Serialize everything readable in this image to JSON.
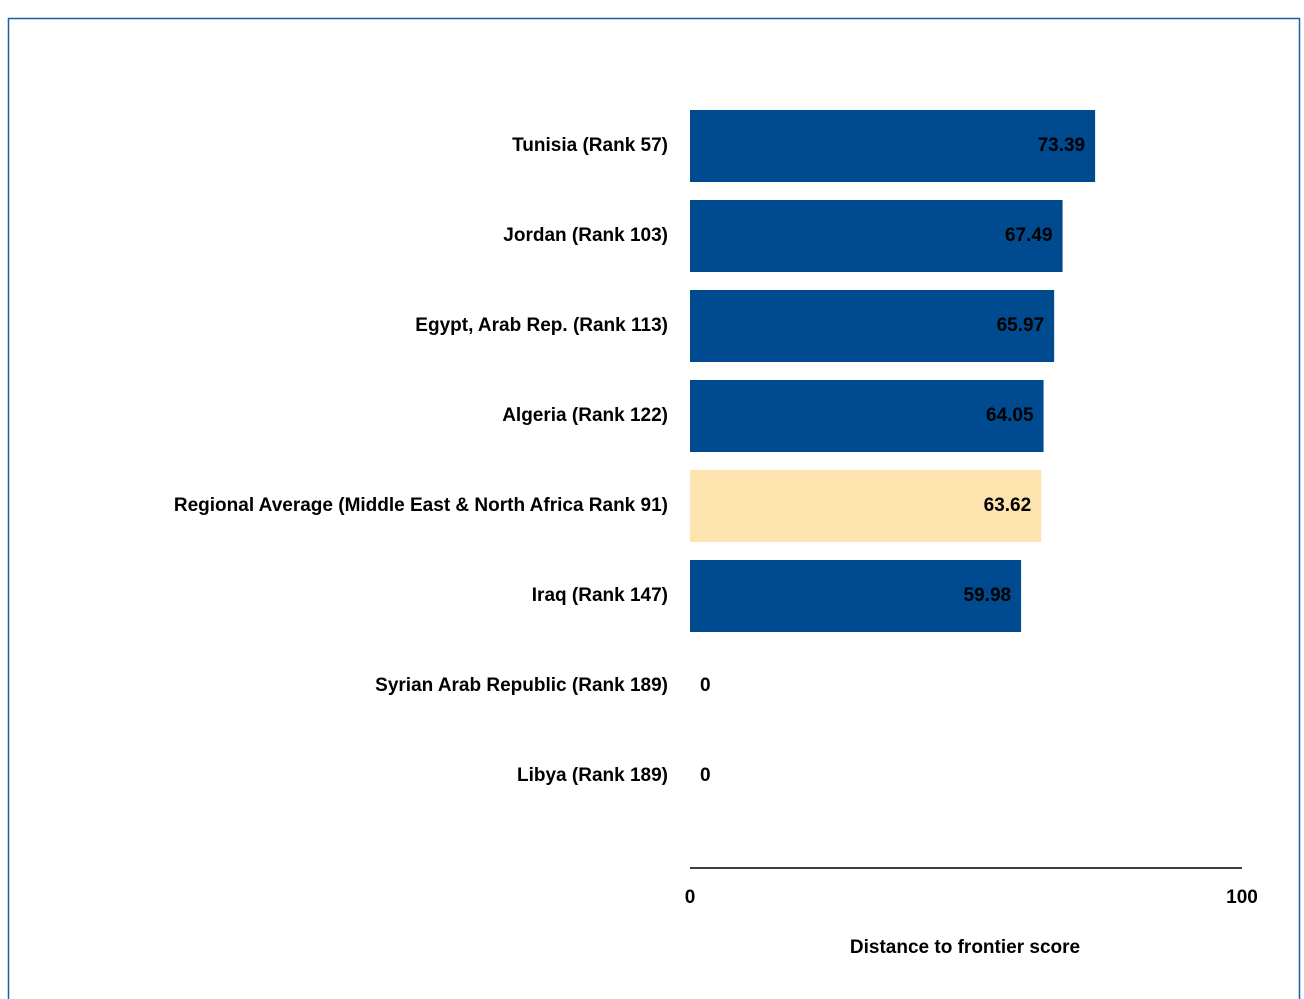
{
  "chart_data": {
    "type": "barh",
    "categories": [
      "Tunisia (Rank 57)",
      "Jordan (Rank 103)",
      "Egypt, Arab Rep. (Rank 113)",
      "Algeria (Rank 122)",
      "Regional Average (Middle East & North Africa Rank 91)",
      "Iraq (Rank 147)",
      "Syrian Arab Republic (Rank 189)",
      "Libya (Rank 189)"
    ],
    "values": [
      73.39,
      67.49,
      65.97,
      64.05,
      63.62,
      59.98,
      0,
      0
    ],
    "colors": [
      "#004a8f",
      "#004a8f",
      "#004a8f",
      "#004a8f",
      "#fde3ae",
      "#004a8f",
      "#004a8f",
      "#004a8f"
    ],
    "label_colors": [
      "#b3c6e0",
      "#b3c6e0",
      "#b3c6e0",
      "#b3c6e0",
      "#000000",
      "#b3c6e0",
      "#b3c6e0",
      "#000000"
    ],
    "xlim": [
      0,
      100
    ],
    "xticks": [
      0,
      100
    ],
    "x_label": "Distance to frontier score"
  }
}
